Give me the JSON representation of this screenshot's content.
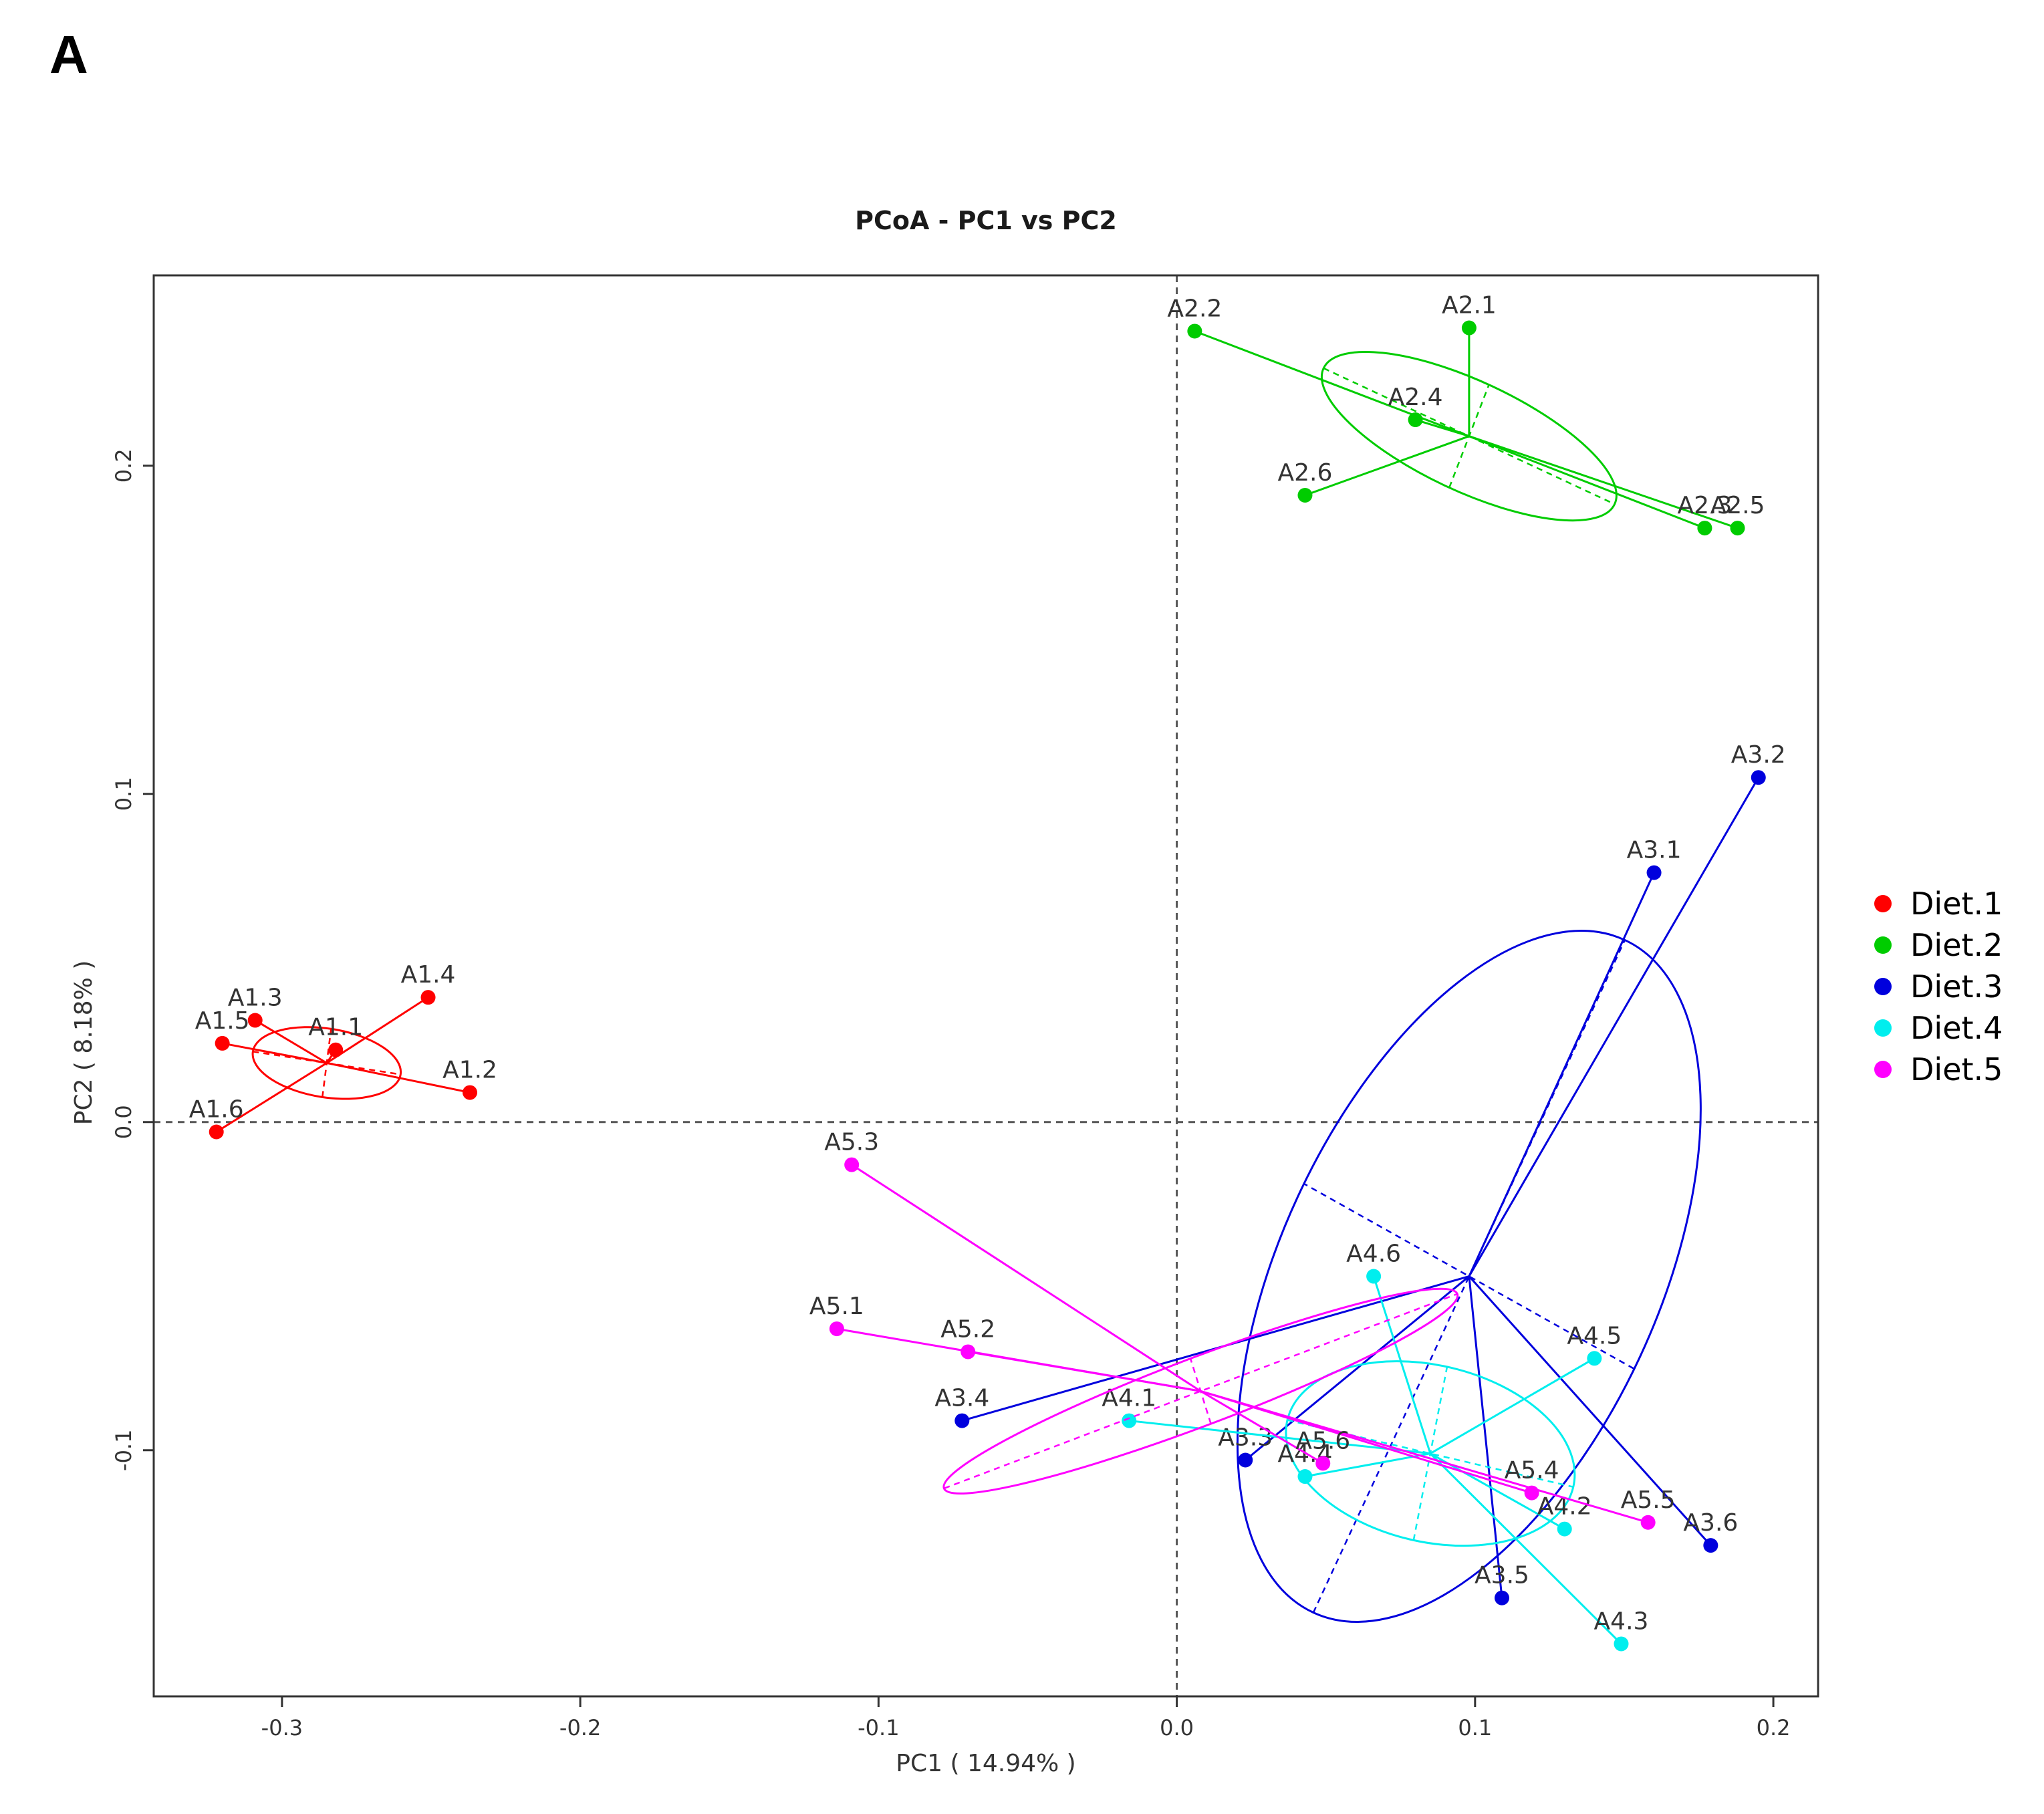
{
  "panel_label": "A",
  "chart_data": {
    "type": "scatter",
    "title": "PCoA - PC1 vs PC2",
    "xlabel": "PC1 ( 14.94% )",
    "ylabel": "PC2 ( 8.18% )",
    "xlim": [
      -0.343,
      0.215
    ],
    "ylim": [
      -0.175,
      0.258
    ],
    "xticks": [
      -0.3,
      -0.2,
      -0.1,
      0.0,
      0.1,
      0.2
    ],
    "yticks": [
      -0.1,
      0.0,
      0.1,
      0.2
    ],
    "xtick_labels": [
      "-0.3",
      "-0.2",
      "-0.1",
      "0.0",
      "0.1",
      "0.2"
    ],
    "ytick_labels": [
      "-0.1",
      "0.0",
      "0.1",
      "0.2"
    ],
    "reference_lines": {
      "x": 0,
      "y": 0,
      "style": "dashed"
    },
    "legend_position": "right",
    "series": [
      {
        "name": "Diet.1",
        "color": "#ff0000",
        "centroid": [
          -0.285,
          0.018
        ],
        "ellipse": {
          "rx": 0.025,
          "ry": 0.0105,
          "angle_deg": -8
        },
        "points": [
          {
            "label": "A1.1",
            "x": -0.282,
            "y": 0.022
          },
          {
            "label": "A1.2",
            "x": -0.237,
            "y": 0.009
          },
          {
            "label": "A1.3",
            "x": -0.309,
            "y": 0.031
          },
          {
            "label": "A1.4",
            "x": -0.251,
            "y": 0.038
          },
          {
            "label": "A1.5",
            "x": -0.32,
            "y": 0.024
          },
          {
            "label": "A1.6",
            "x": -0.322,
            "y": -0.003
          }
        ]
      },
      {
        "name": "Diet.2",
        "color": "#00cc00",
        "centroid": [
          0.098,
          0.209
        ],
        "ellipse": {
          "rx": 0.053,
          "ry": 0.017,
          "angle_deg": -23
        },
        "points": [
          {
            "label": "A2.1",
            "x": 0.098,
            "y": 0.242
          },
          {
            "label": "A2.2",
            "x": 0.006,
            "y": 0.241
          },
          {
            "label": "A2.3",
            "x": 0.177,
            "y": 0.181
          },
          {
            "label": "A2.4",
            "x": 0.08,
            "y": 0.214
          },
          {
            "label": "A2.5",
            "x": 0.188,
            "y": 0.181
          },
          {
            "label": "A2.6",
            "x": 0.043,
            "y": 0.191
          }
        ]
      },
      {
        "name": "Diet.3",
        "color": "#0000dd",
        "centroid": [
          0.098,
          -0.047
        ],
        "ellipse": {
          "rx": 0.115,
          "ry": 0.062,
          "angle_deg": 63
        },
        "points": [
          {
            "label": "A3.1",
            "x": 0.16,
            "y": 0.076
          },
          {
            "label": "A3.2",
            "x": 0.195,
            "y": 0.105
          },
          {
            "label": "A3.3",
            "x": 0.023,
            "y": -0.103
          },
          {
            "label": "A3.4",
            "x": -0.072,
            "y": -0.091
          },
          {
            "label": "A3.5",
            "x": 0.109,
            "y": -0.145
          },
          {
            "label": "A3.6",
            "x": 0.179,
            "y": -0.129
          }
        ]
      },
      {
        "name": "Diet.4",
        "color": "#00eeee",
        "centroid": [
          0.085,
          -0.101
        ],
        "ellipse": {
          "rx": 0.049,
          "ry": 0.027,
          "angle_deg": -12
        },
        "points": [
          {
            "label": "A4.1",
            "x": -0.016,
            "y": -0.091
          },
          {
            "label": "A4.2",
            "x": 0.13,
            "y": -0.124
          },
          {
            "label": "A4.3",
            "x": 0.149,
            "y": -0.159
          },
          {
            "label": "A4.4",
            "x": 0.043,
            "y": -0.108
          },
          {
            "label": "A4.5",
            "x": 0.14,
            "y": -0.072
          },
          {
            "label": "A4.6",
            "x": 0.066,
            "y": -0.047
          }
        ]
      },
      {
        "name": "Diet.5",
        "color": "#ff00ff",
        "centroid": [
          0.008,
          -0.082
        ],
        "ellipse": {
          "rx": 0.091,
          "ry": 0.0105,
          "angle_deg": 19
        },
        "points": [
          {
            "label": "A5.1",
            "x": -0.114,
            "y": -0.063
          },
          {
            "label": "A5.2",
            "x": -0.07,
            "y": -0.07
          },
          {
            "label": "A5.3",
            "x": -0.109,
            "y": -0.013
          },
          {
            "label": "A5.4",
            "x": 0.119,
            "y": -0.113
          },
          {
            "label": "A5.5",
            "x": 0.158,
            "y": -0.122
          },
          {
            "label": "A5.6",
            "x": 0.049,
            "y": -0.104
          }
        ]
      }
    ]
  }
}
